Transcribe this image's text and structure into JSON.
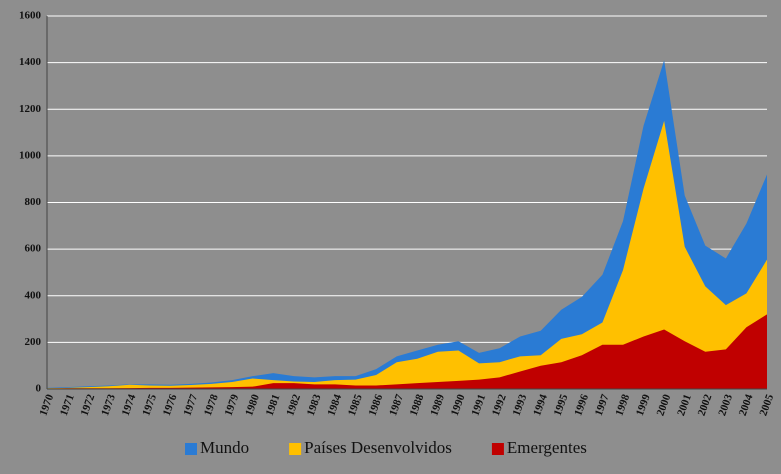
{
  "chart_data": {
    "type": "area",
    "categories": [
      "1970",
      "1971",
      "1972",
      "1973",
      "1974",
      "1975",
      "1976",
      "1977",
      "1978",
      "1979",
      "1980",
      "1981",
      "1982",
      "1983",
      "1984",
      "1985",
      "1986",
      "1987",
      "1988",
      "1989",
      "1990",
      "1991",
      "1992",
      "1993",
      "1994",
      "1995",
      "1996",
      "1997",
      "1998",
      "1999",
      "2000",
      "2001",
      "2002",
      "2003",
      "2004",
      "2005"
    ],
    "series": [
      {
        "name": "Mundo",
        "color": "#2a7bd4",
        "values": [
          5,
          8,
          12,
          15,
          20,
          20,
          18,
          22,
          28,
          38,
          55,
          68,
          55,
          50,
          55,
          55,
          85,
          140,
          165,
          190,
          205,
          155,
          175,
          225,
          250,
          340,
          395,
          490,
          720,
          1130,
          1410,
          830,
          615,
          560,
          710,
          920
        ]
      },
      {
        "name": "Países Desenvolvidos",
        "color": "#ffc000",
        "values": [
          3,
          5,
          8,
          12,
          18,
          15,
          14,
          17,
          22,
          30,
          45,
          38,
          32,
          30,
          38,
          40,
          60,
          115,
          130,
          160,
          165,
          110,
          115,
          140,
          145,
          215,
          235,
          285,
          510,
          860,
          1150,
          610,
          440,
          360,
          410,
          555
        ]
      },
      {
        "name": "Emergentes",
        "color": "#c00000",
        "values": [
          2,
          3,
          3,
          3,
          4,
          5,
          5,
          6,
          7,
          8,
          10,
          25,
          25,
          20,
          20,
          15,
          15,
          20,
          25,
          30,
          35,
          40,
          50,
          75,
          100,
          115,
          145,
          190,
          190,
          225,
          255,
          205,
          160,
          170,
          265,
          320
        ]
      }
    ],
    "ylim": [
      0,
      1600
    ],
    "yticks": [
      0,
      200,
      400,
      600,
      800,
      1000,
      1200,
      1400,
      1600
    ],
    "grid": true,
    "legend": "bottom"
  }
}
